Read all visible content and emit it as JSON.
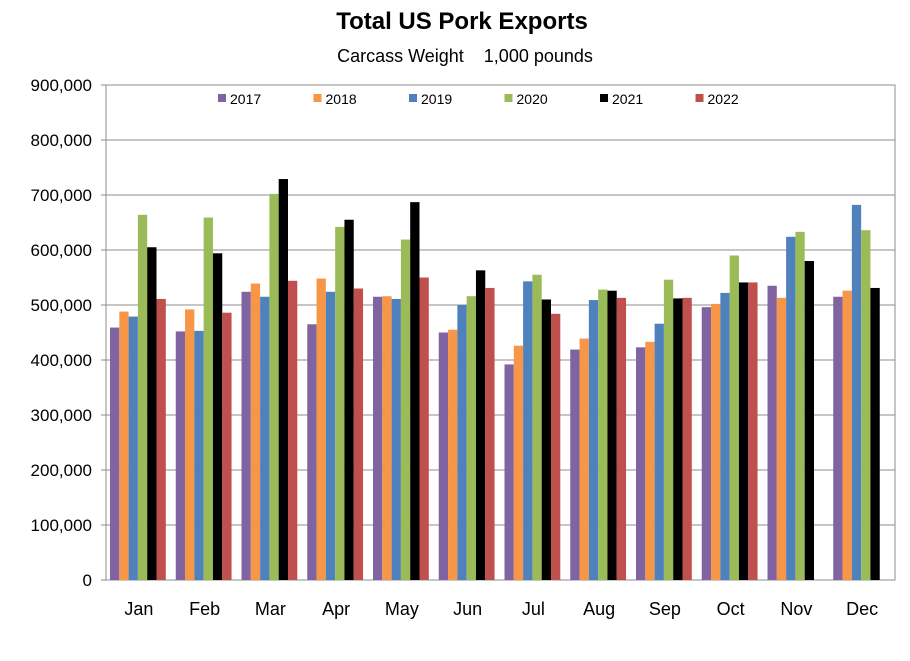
{
  "chart_data": {
    "type": "bar",
    "title": "Total US Pork Exports",
    "subtitle": "Carcass Weight    1,000 pounds",
    "xlabel": "",
    "ylabel": "",
    "ylim": [
      0,
      900000
    ],
    "yticks": [
      "0",
      "100,000",
      "200,000",
      "300,000",
      "400,000",
      "500,000",
      "600,000",
      "700,000",
      "800,000",
      "900,000"
    ],
    "grid": true,
    "legend_position": "top",
    "categories": [
      "Jan",
      "Feb",
      "Mar",
      "Apr",
      "May",
      "Jun",
      "Jul",
      "Aug",
      "Sep",
      "Oct",
      "Nov",
      "Dec"
    ],
    "series": [
      {
        "name": "2017",
        "color": "#8064A2",
        "values": [
          459000,
          452000,
          524000,
          465000,
          515000,
          450000,
          392000,
          419000,
          423000,
          496000,
          535000,
          515000
        ]
      },
      {
        "name": "2018",
        "color": "#F79646",
        "values": [
          488000,
          492000,
          539000,
          548000,
          516000,
          455000,
          426000,
          439000,
          433000,
          502000,
          513000,
          526000
        ]
      },
      {
        "name": "2019",
        "color": "#4F81BD",
        "values": [
          479000,
          453000,
          515000,
          524000,
          511000,
          500000,
          543000,
          509000,
          466000,
          522000,
          624000,
          682000
        ]
      },
      {
        "name": "2020",
        "color": "#9BBB59",
        "values": [
          664000,
          659000,
          702000,
          642000,
          619000,
          516000,
          555000,
          528000,
          546000,
          590000,
          633000,
          636000
        ]
      },
      {
        "name": "2021",
        "color": "#000000",
        "values": [
          605000,
          594000,
          729000,
          655000,
          687000,
          563000,
          510000,
          526000,
          512000,
          541000,
          580000,
          531000
        ]
      },
      {
        "name": "2022",
        "color": "#C0504D",
        "values": [
          511000,
          486000,
          544000,
          530000,
          550000,
          531000,
          484000,
          513000,
          513000,
          541000,
          null,
          null
        ]
      }
    ]
  }
}
